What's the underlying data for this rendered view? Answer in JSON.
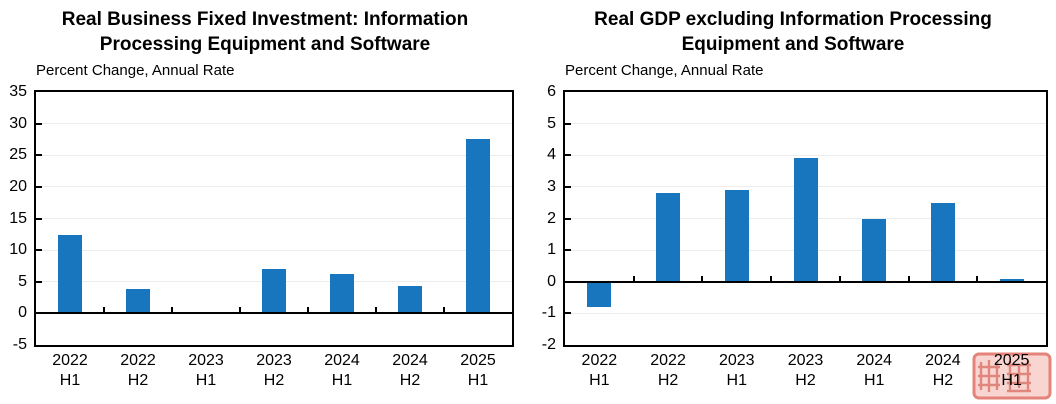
{
  "page": {
    "background": "#ffffff",
    "axis_color": "#000000",
    "grid_color": "#ececec"
  },
  "chart_data": [
    {
      "type": "bar",
      "title": "Real Business Fixed Investment: Information Processing Equipment and Software",
      "title_lines": [
        "Real Business Fixed Investment: Information",
        "Processing Equipment and Software"
      ],
      "subtitle": "Percent Change, Annual Rate",
      "categories": [
        "2022 H1",
        "2022 H2",
        "2023 H1",
        "2023 H2",
        "2024 H1",
        "2024 H2",
        "2025 H1"
      ],
      "categories_split": [
        {
          "year": "2022",
          "half": "H1"
        },
        {
          "year": "2022",
          "half": "H2"
        },
        {
          "year": "2023",
          "half": "H1"
        },
        {
          "year": "2023",
          "half": "H2"
        },
        {
          "year": "2024",
          "half": "H1"
        },
        {
          "year": "2024",
          "half": "H2"
        },
        {
          "year": "2025",
          "half": "H1"
        }
      ],
      "values": [
        12.4,
        3.8,
        0.1,
        7.0,
        6.3,
        4.4,
        27.5
      ],
      "ylim": [
        -5,
        35
      ],
      "yticks": [
        35,
        30,
        25,
        20,
        15,
        10,
        5,
        0,
        -5
      ],
      "grid": true,
      "legend": null,
      "bar_color": "#1776be"
    },
    {
      "type": "bar",
      "title": "Real GDP excluding Information Processing Equipment and Software",
      "title_lines": [
        "Real GDP excluding Information Processing",
        "Equipment and Software"
      ],
      "subtitle": "Percent Change, Annual Rate",
      "categories": [
        "2022 H1",
        "2022 H2",
        "2023 H1",
        "2023 H2",
        "2024 H1",
        "2024 H2",
        "2025 H1"
      ],
      "categories_split": [
        {
          "year": "2022",
          "half": "H1"
        },
        {
          "year": "2022",
          "half": "H2"
        },
        {
          "year": "2023",
          "half": "H1"
        },
        {
          "year": "2023",
          "half": "H2"
        },
        {
          "year": "2024",
          "half": "H1"
        },
        {
          "year": "2024",
          "half": "H2"
        },
        {
          "year": "2025",
          "half": "H1"
        }
      ],
      "values": [
        -0.8,
        2.8,
        2.9,
        3.9,
        2.0,
        2.5,
        0.1
      ],
      "ylim": [
        -2,
        6
      ],
      "yticks": [
        6,
        5,
        4,
        3,
        2,
        1,
        0,
        -1,
        -2
      ],
      "grid": true,
      "legend": null,
      "bar_color": "#1776be"
    }
  ],
  "watermark": {
    "style": "red-seal-stamp",
    "position": "bottom-right",
    "stamp_fill": "#f7cbc6",
    "stamp_border": "#e4837a",
    "glyph_color": "#dd7f76",
    "band_color": "#eb9a90"
  }
}
